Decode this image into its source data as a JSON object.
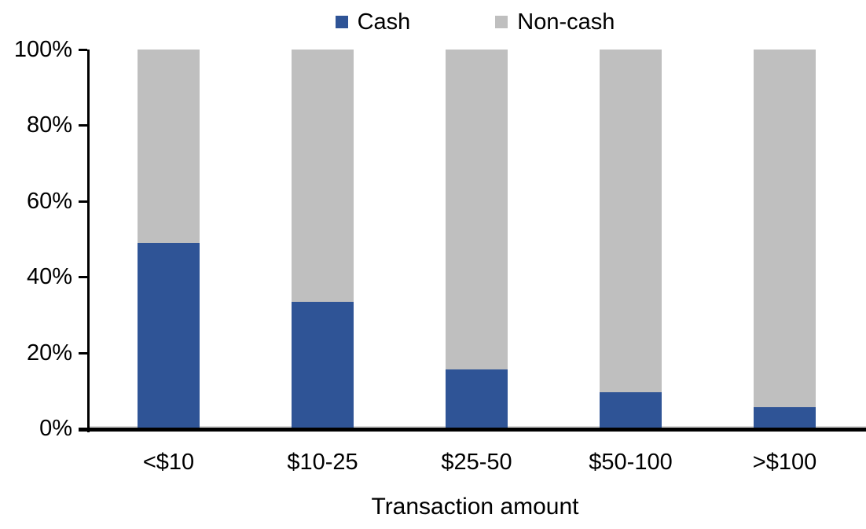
{
  "chart_data": {
    "type": "bar",
    "stacked": true,
    "stack_mode": "percent",
    "title": "",
    "xlabel": "Transaction amount",
    "ylabel": "",
    "categories": [
      "<$10",
      "$10-25",
      "$25-50",
      "$50-100",
      ">$100"
    ],
    "series": [
      {
        "name": "Cash",
        "color": "#2F5496",
        "values": [
          49,
          33.5,
          15.5,
          9.5,
          5.5
        ]
      },
      {
        "name": "Non-cash",
        "color": "#BFBFBF",
        "values": [
          51,
          66.5,
          84.5,
          90.5,
          94.5
        ]
      }
    ],
    "ylim": [
      0,
      100
    ],
    "ytick_values": [
      0,
      20,
      40,
      60,
      80,
      100
    ],
    "ytick_labels": [
      "0%",
      "20%",
      "40%",
      "60%",
      "80%",
      "100%"
    ],
    "legend_position": "top",
    "grid": false,
    "axis_color": "#000000",
    "baseline_light_color": "#D9D9D9"
  }
}
